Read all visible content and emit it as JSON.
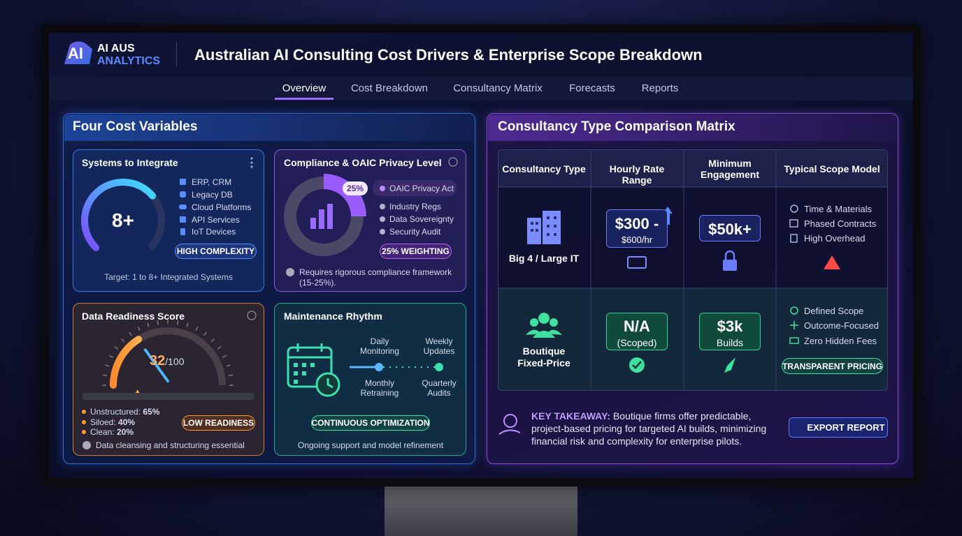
{
  "header": {
    "logo_badge": "AI",
    "logo_line1": "AI AUS",
    "logo_line2": "ANALYTICS",
    "title": "Australian AI Consulting Cost Drivers & Enterprise Scope Breakdown"
  },
  "nav": {
    "items": [
      "Overview",
      "Cost Breakdown",
      "Consultancy Matrix",
      "Forecasts",
      "Reports"
    ],
    "active": 0
  },
  "cost_variables": {
    "title": "Four Cost Variables",
    "systems": {
      "title": "Systems to Integrate",
      "value": "8+",
      "items": [
        "ERP, CRM",
        "Legacy DB",
        "Cloud Platforms",
        "API Services",
        "IoT Devices"
      ],
      "badge": "HIGH COMPLEXITY",
      "footer": "Target: 1 to 8+ Integrated Systems"
    },
    "compliance": {
      "title": "Compliance & OAIC Privacy Level",
      "ring_label": "25%",
      "items": [
        "OAIC Privacy Act",
        "Industry Regs",
        "Data Sovereignty",
        "Security Audit"
      ],
      "badge": "25% WEIGHTING",
      "note": "Requires rigorous compliance framework (15-25%)."
    },
    "data_readiness": {
      "title": "Data Readiness Score",
      "score": 32,
      "score_max": {
        "value": 100,
        "label": "/100"
      },
      "breakdown": [
        {
          "label": "Unstructured:",
          "value": "65%"
        },
        {
          "label": "Siloed:",
          "value": "40%"
        },
        {
          "label": "Clean:",
          "value": "20%"
        }
      ],
      "badge": "LOW READINESS",
      "note": "Data cleansing and structuring essential"
    },
    "maintenance": {
      "title": "Maintenance Rhythm",
      "steps": [
        "Daily Monitoring",
        "Weekly Updates",
        "Monthly Retraining",
        "Quarterly Audits"
      ],
      "badge": "CONTINUOUS OPTIMIZATION",
      "footer": "Ongoing support and model refinement"
    }
  },
  "matrix": {
    "title": "Consultancy Type Comparison Matrix",
    "columns": [
      "Consultancy Type",
      "Hourly Rate Range",
      "Minimum Engagement",
      "Typical Scope Model"
    ],
    "rows": [
      {
        "type": "Big 4 / Large IT",
        "rate_main": "$300 -",
        "rate_sub": "$600/hr",
        "minimum_main": "$50k+",
        "scope": [
          "Time & Materials",
          "Phased Contracts",
          "High Overhead"
        ]
      },
      {
        "type": "Boutique Fixed-Price",
        "rate_main": "N/A",
        "rate_sub": "(Scoped)",
        "minimum_main": "$3k",
        "minimum_sub": "Builds",
        "scope": [
          "Defined Scope",
          "Outcome-Focused",
          "Zero Hidden Fees"
        ],
        "scope_badge": "TRANSPARENT PRICING"
      }
    ],
    "takeaway_label": "KEY TAKEAWAY:",
    "takeaway_text": "Boutique firms offer predictable, project-based pricing for targeted AI builds, minimizing financial risk and complexity for enterprise pilots.",
    "export_button": "EXPORT REPORT"
  }
}
